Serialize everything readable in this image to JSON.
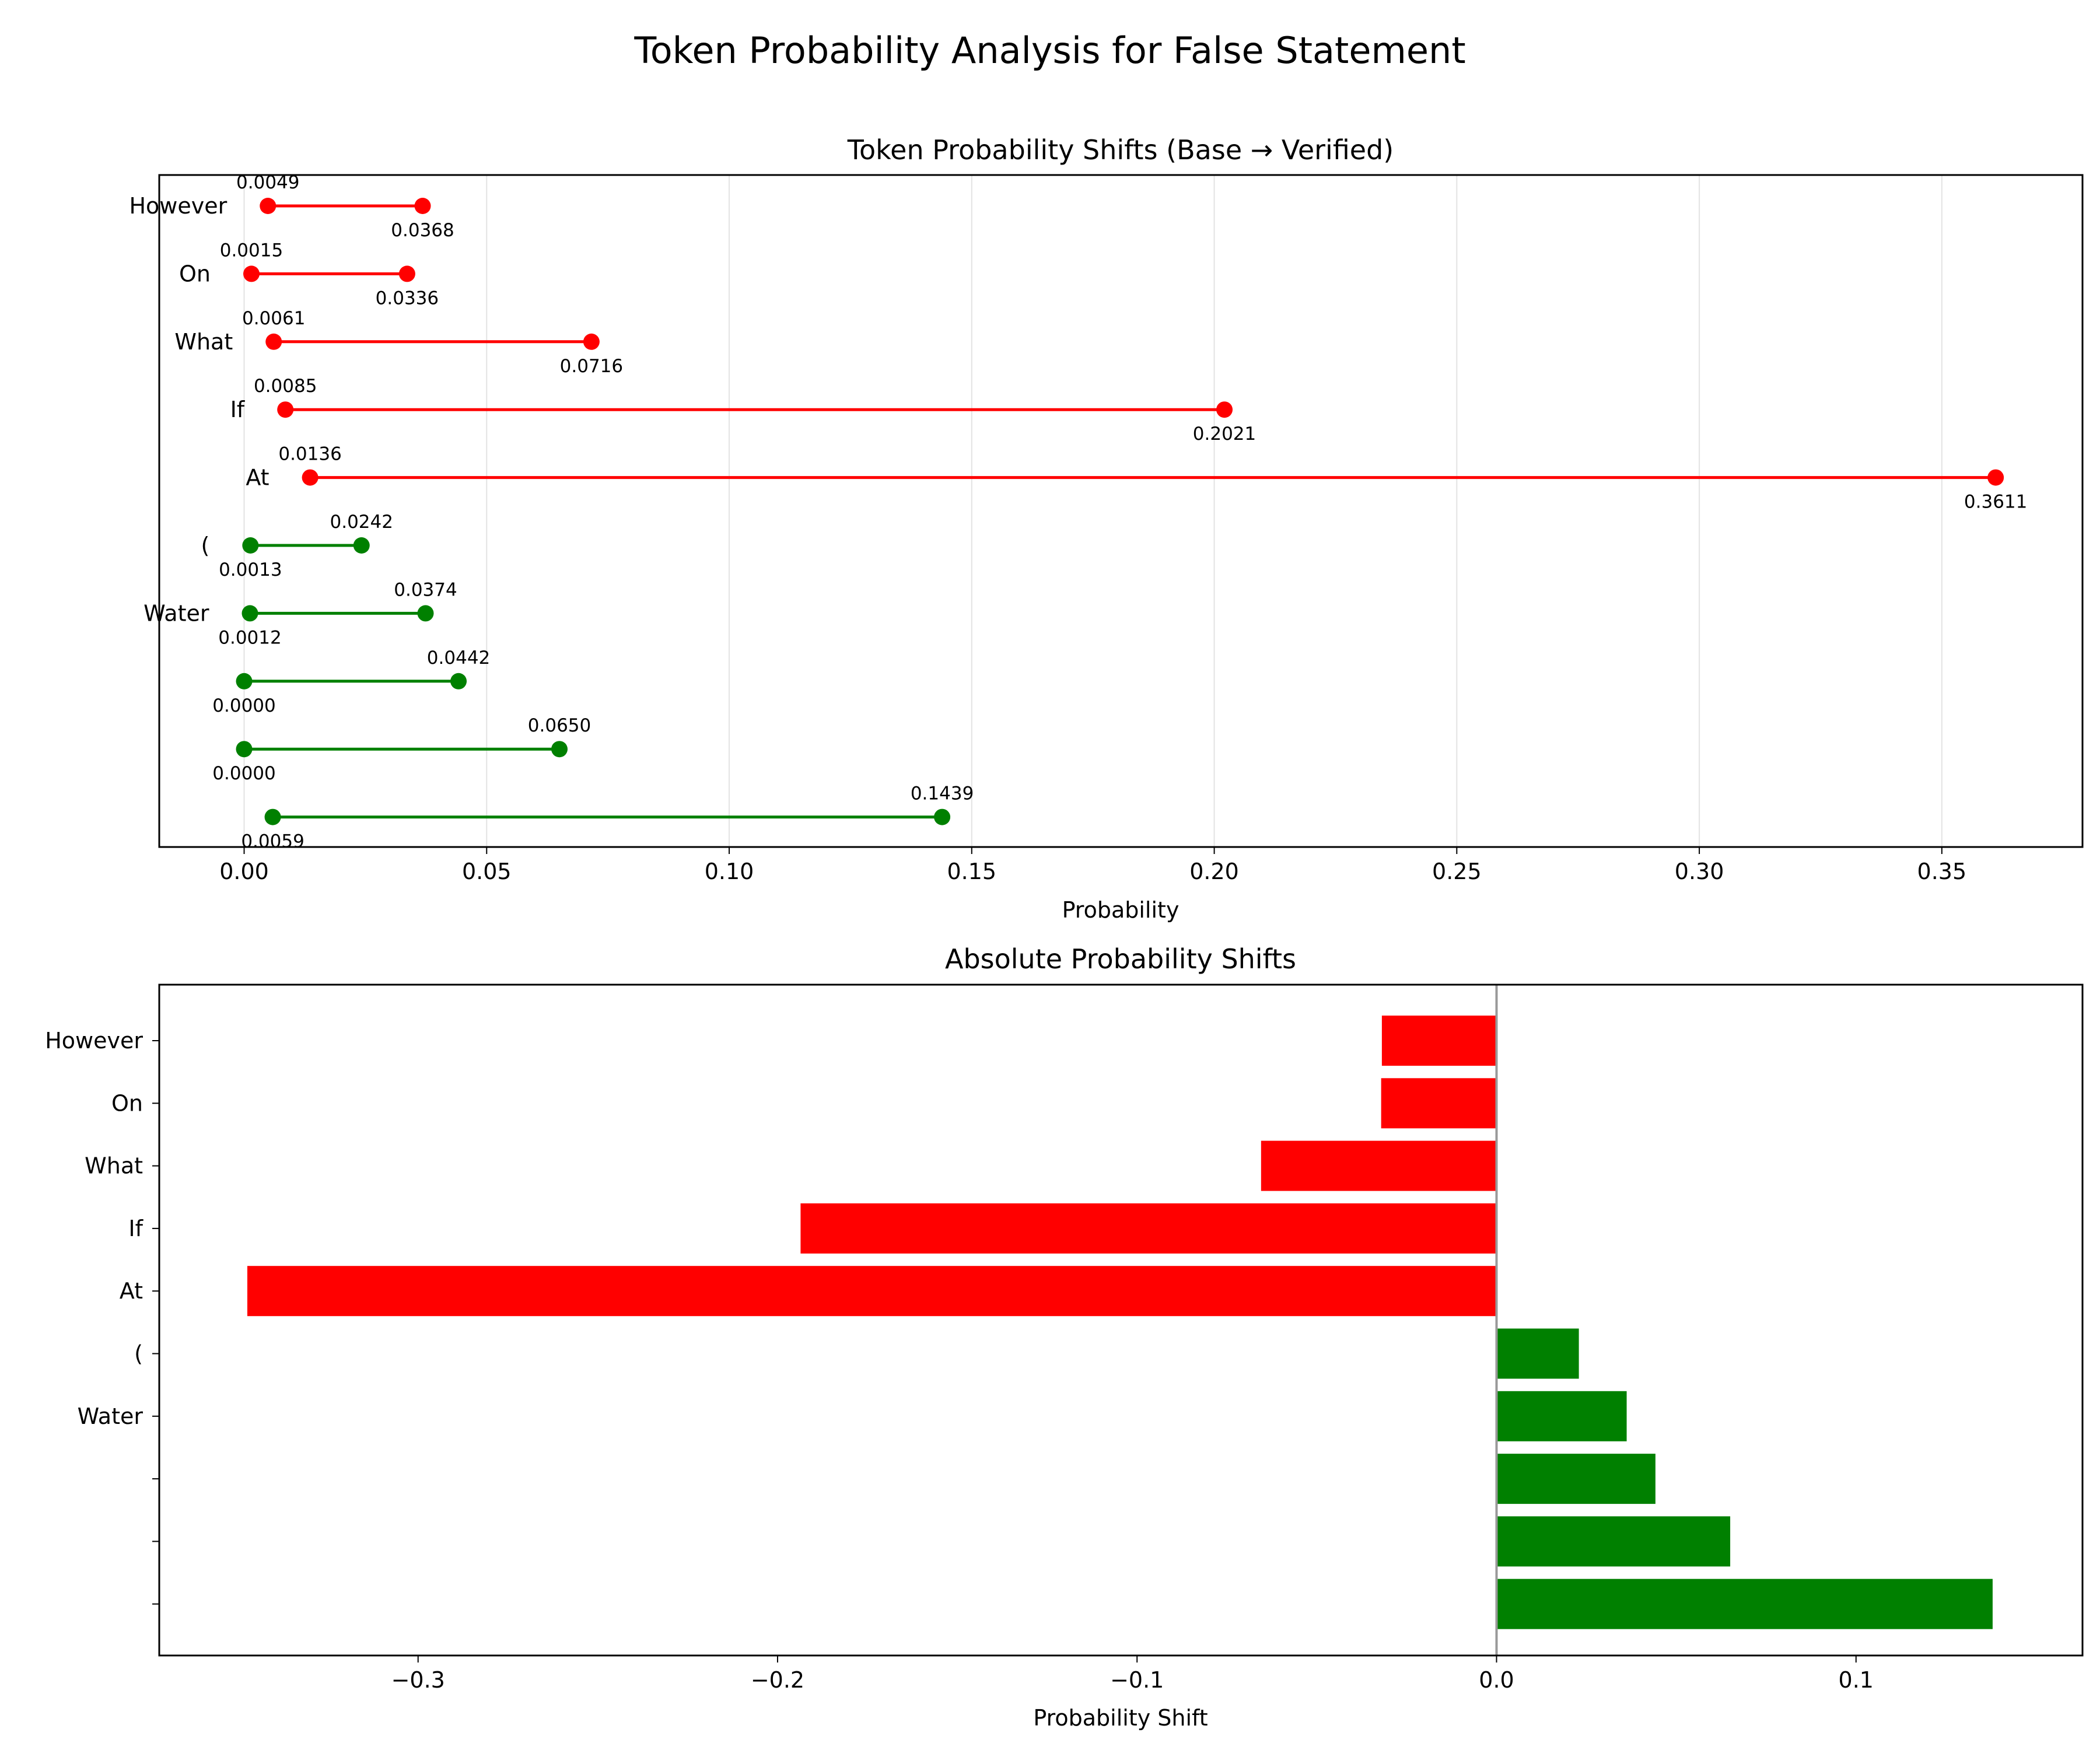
{
  "figure": {
    "suptitle": "Token Probability Analysis for False Statement"
  },
  "chart_data": [
    {
      "type": "dumbbell",
      "title": "Token Probability Shifts (Base → Verified)",
      "xlabel": "Probability",
      "ylabel": "",
      "xlim": [
        -0.0175,
        0.379
      ],
      "xticks": [
        0.0,
        0.05,
        0.1,
        0.15,
        0.2,
        0.25,
        0.3,
        0.35
      ],
      "xtick_labels": [
        "0.00",
        "0.05",
        "0.10",
        "0.15",
        "0.20",
        "0.25",
        "0.30",
        "0.35"
      ],
      "grid": "x",
      "legend": "none",
      "colors": {
        "decrease": "#ff0000",
        "increase": "#008000"
      },
      "rows": [
        {
          "token": "However",
          "verified": 0.0049,
          "base": 0.0368,
          "verified_label": "0.0049",
          "base_label": "0.0368",
          "direction": "decrease"
        },
        {
          "token": "On",
          "verified": 0.0015,
          "base": 0.0336,
          "verified_label": "0.0015",
          "base_label": "0.0336",
          "direction": "decrease"
        },
        {
          "token": "What",
          "verified": 0.0061,
          "base": 0.0716,
          "verified_label": "0.0061",
          "base_label": "0.0716",
          "direction": "decrease"
        },
        {
          "token": "If",
          "verified": 0.0085,
          "base": 0.2021,
          "verified_label": "0.0085",
          "base_label": "0.2021",
          "direction": "decrease"
        },
        {
          "token": "At",
          "verified": 0.0136,
          "base": 0.3611,
          "verified_label": "0.0136",
          "base_label": "0.3611",
          "direction": "decrease"
        },
        {
          "token": "(",
          "verified": 0.0242,
          "base": 0.0013,
          "verified_label": "0.0242",
          "base_label": "0.0013",
          "direction": "increase"
        },
        {
          "token": "Water",
          "verified": 0.0374,
          "base": 0.0012,
          "verified_label": "0.0374",
          "base_label": "0.0012",
          "direction": "increase"
        },
        {
          "token": "",
          "verified": 0.0442,
          "base": 0.0,
          "verified_label": "0.0442",
          "base_label": "0.0000",
          "direction": "increase"
        },
        {
          "token": "",
          "verified": 0.065,
          "base": 0.0,
          "verified_label": "0.0650",
          "base_label": "0.0000",
          "direction": "increase"
        },
        {
          "token": "",
          "verified": 0.1439,
          "base": 0.0059,
          "verified_label": "0.1439",
          "base_label": "0.0059",
          "direction": "increase"
        }
      ]
    },
    {
      "type": "bar",
      "orientation": "horizontal",
      "title": "Absolute Probability Shifts",
      "xlabel": "Probability Shift",
      "ylabel": "",
      "xlim": [
        -0.372,
        0.163
      ],
      "xticks": [
        -0.3,
        -0.2,
        -0.1,
        0.0,
        0.1
      ],
      "xtick_labels": [
        "−0.3",
        "−0.2",
        "−0.1",
        "0.0",
        "0.1"
      ],
      "zero_line": true,
      "legend": "none",
      "colors": {
        "negative": "#ff0000",
        "positive": "#008000",
        "zero_line": "#999999"
      },
      "categories": [
        "However",
        "On",
        "What",
        "If",
        "At",
        "(",
        "Water",
        "",
        "",
        ""
      ],
      "values": [
        -0.0319,
        -0.0321,
        -0.0655,
        -0.1936,
        -0.3475,
        0.0229,
        0.0362,
        0.0442,
        0.065,
        0.138
      ]
    }
  ]
}
